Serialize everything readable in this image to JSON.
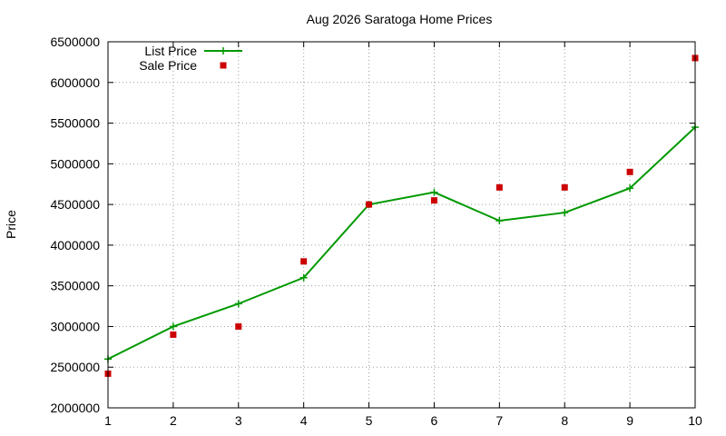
{
  "chart_data": {
    "type": "line",
    "title": "Aug 2026 Saratoga Home Prices",
    "xlabel": "",
    "ylabel": "Price",
    "x": [
      1,
      2,
      3,
      4,
      5,
      6,
      7,
      8,
      9,
      10
    ],
    "xlim": [
      1,
      10
    ],
    "ylim": [
      2000000,
      6500000
    ],
    "x_ticks": [
      "1",
      "2",
      "3",
      "4",
      "5",
      "6",
      "7",
      "8",
      "9",
      "10"
    ],
    "y_ticks": [
      "2000000",
      "2500000",
      "3000000",
      "3500000",
      "4000000",
      "4500000",
      "5000000",
      "5500000",
      "6000000",
      "6500000"
    ],
    "grid": true,
    "legend_position": "top-left",
    "series": [
      {
        "name": "List Price",
        "style": "line-with-plus-markers",
        "color": "#009900",
        "values": [
          2600000,
          3000000,
          3280000,
          3600000,
          4500000,
          4650000,
          4300000,
          4400000,
          4700000,
          5450000
        ]
      },
      {
        "name": "Sale Price",
        "style": "square-points",
        "color": "#cc0000",
        "values": [
          2420000,
          2900000,
          3000000,
          3800000,
          4500000,
          4550000,
          4710000,
          4710000,
          4900000,
          6300000
        ]
      }
    ]
  }
}
